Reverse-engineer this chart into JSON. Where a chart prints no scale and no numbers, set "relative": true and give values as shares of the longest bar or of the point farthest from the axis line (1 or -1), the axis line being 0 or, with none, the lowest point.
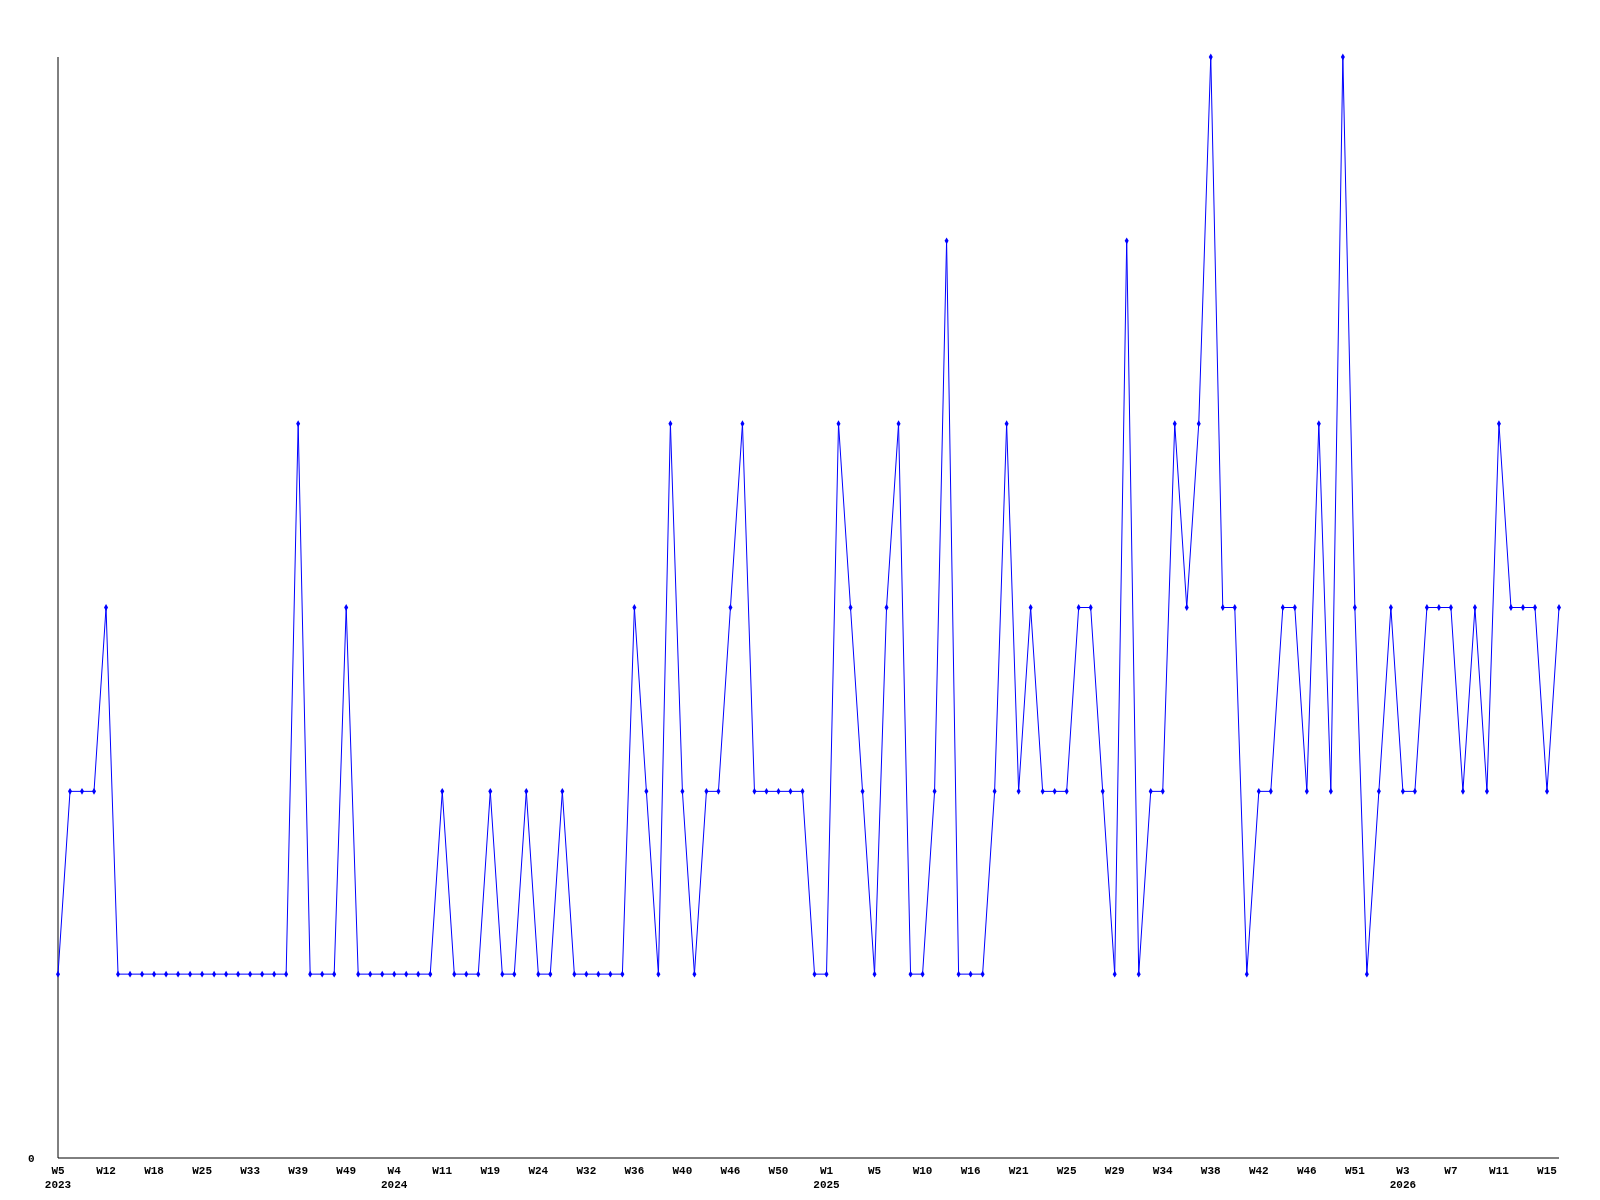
{
  "chart_data": {
    "type": "line",
    "relative": true,
    "marker": "diamond",
    "line_style": "solid",
    "annotations": [
      "0"
    ],
    "categories": [
      "W5\n2023",
      null,
      null,
      null,
      "W12",
      null,
      null,
      null,
      "W18",
      null,
      null,
      null,
      "W25",
      null,
      null,
      null,
      "W33",
      null,
      null,
      null,
      "W39",
      null,
      null,
      null,
      "W49",
      null,
      null,
      null,
      "W4\n2024",
      null,
      null,
      null,
      "W11",
      null,
      null,
      null,
      "W19",
      null,
      null,
      null,
      "W24",
      null,
      null,
      null,
      "W32",
      null,
      null,
      null,
      "W36",
      null,
      null,
      null,
      "W40",
      null,
      null,
      null,
      "W46",
      null,
      null,
      null,
      "W50",
      null,
      null,
      null,
      "W1\n2025",
      null,
      null,
      null,
      "W5",
      null,
      null,
      null,
      "W10",
      null,
      null,
      null,
      "W16",
      null,
      null,
      null,
      "W21",
      null,
      null,
      null,
      "W25",
      null,
      null,
      null,
      "W29",
      null,
      null,
      null,
      "W34",
      null,
      null,
      null,
      "W38",
      null,
      null,
      null,
      "W42",
      null,
      null,
      null,
      "W46",
      null,
      null,
      null,
      "W51",
      null,
      null,
      null,
      "W3\n2026",
      null,
      null,
      null,
      "W7",
      null,
      null,
      null,
      "W11",
      null,
      null,
      null,
      "W15",
      null
    ],
    "series": [
      {
        "color": "#0000ff",
        "values": [
          0.167,
          0.333,
          0.333,
          0.333,
          0.5,
          0.167,
          0.167,
          0.167,
          0.167,
          0.167,
          0.167,
          0.167,
          0.167,
          0.167,
          0.167,
          0.167,
          0.167,
          0.167,
          0.167,
          0.167,
          0.667,
          0.167,
          0.167,
          0.167,
          0.5,
          0.167,
          0.167,
          0.167,
          0.167,
          0.167,
          0.167,
          0.167,
          0.333,
          0.167,
          0.167,
          0.167,
          0.333,
          0.167,
          0.167,
          0.333,
          0.167,
          0.167,
          0.333,
          0.167,
          0.167,
          0.167,
          0.167,
          0.167,
          0.5,
          0.333,
          0.167,
          0.667,
          0.333,
          0.167,
          0.333,
          0.333,
          0.5,
          0.667,
          0.333,
          0.333,
          0.333,
          0.333,
          0.333,
          0.167,
          0.167,
          0.667,
          0.5,
          0.333,
          0.167,
          0.5,
          0.667,
          0.167,
          0.167,
          0.333,
          0.833,
          0.167,
          0.167,
          0.167,
          0.333,
          0.667,
          0.333,
          0.5,
          0.333,
          0.333,
          0.333,
          0.5,
          0.5,
          0.333,
          0.167,
          0.833,
          0.167,
          0.333,
          0.333,
          0.667,
          0.5,
          0.667,
          1,
          0.5,
          0.5,
          0.167,
          0.333,
          0.333,
          0.5,
          0.5,
          0.333,
          0.667,
          0.333,
          1,
          0.5,
          0.167,
          0.333,
          0.5,
          0.333,
          0.333,
          0.5,
          0.5,
          0.5,
          0.333,
          0.5,
          0.333,
          0.667,
          0.5,
          0.5,
          0.5,
          0.333,
          0.5
        ]
      }
    ]
  }
}
